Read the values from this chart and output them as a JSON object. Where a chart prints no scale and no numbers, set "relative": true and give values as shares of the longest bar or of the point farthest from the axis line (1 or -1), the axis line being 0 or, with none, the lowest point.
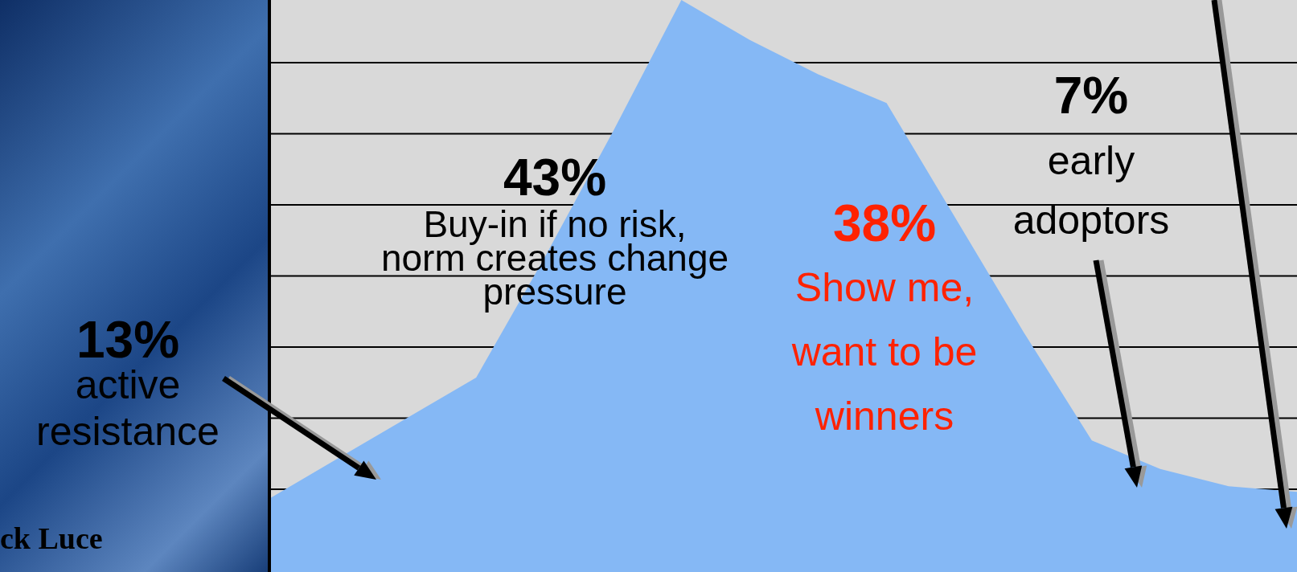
{
  "chart_data": {
    "type": "area",
    "relative": true,
    "grid": "y",
    "color": "#85b8f5",
    "categories": [
      null,
      null,
      null,
      null,
      null,
      null,
      null,
      null,
      null,
      null,
      null,
      null,
      null,
      null,
      null,
      null
    ],
    "values": [
      0.13,
      0.2,
      0.27,
      0.34,
      0.55,
      0.77,
      1,
      0.93,
      0.87,
      0.82,
      0.62,
      0.42,
      0.23,
      0.18,
      0.15,
      0.14
    ],
    "annotations": [
      "13%",
      "active resistance",
      "43%",
      "Buy-in if no risk, norm creates change pressure",
      "38%",
      "Show me, want to be winners",
      "7%",
      "early adoptors",
      "ck Luce"
    ]
  }
}
